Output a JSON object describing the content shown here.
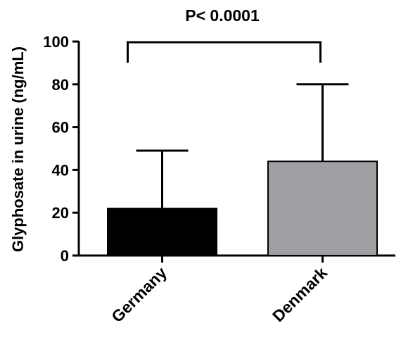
{
  "chart_data": {
    "type": "bar",
    "categories": [
      "Germany",
      "Denmark"
    ],
    "values": [
      22,
      44
    ],
    "error_upper": [
      49,
      80
    ],
    "colors": [
      "#000000",
      "#a0a0a4"
    ],
    "title": "",
    "xlabel": "",
    "ylabel": "Glyphosate in urine (ng/mL)",
    "ylim": [
      0,
      100
    ],
    "yticks": [
      0,
      20,
      40,
      60,
      80,
      100
    ],
    "annotation": "P< 0.0001",
    "grid": false,
    "legend": "none"
  }
}
